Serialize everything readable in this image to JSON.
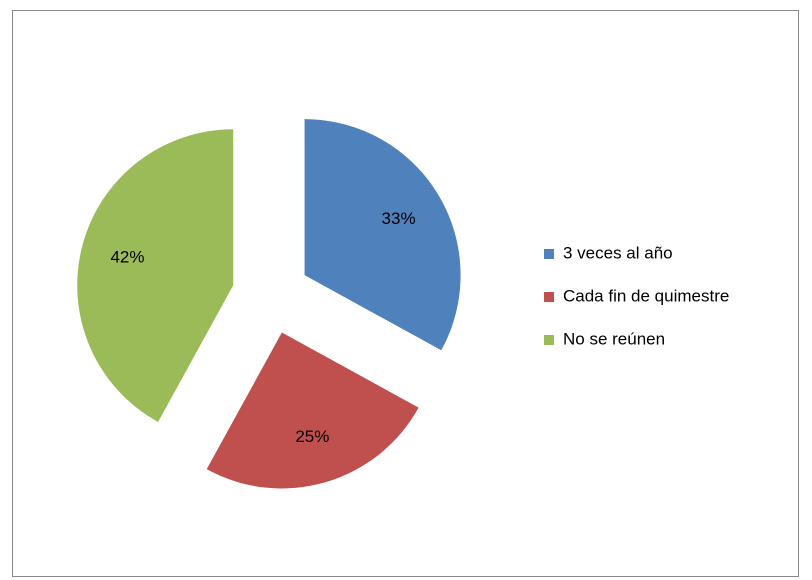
{
  "chart_data": {
    "type": "pie",
    "categories": [
      "3 veces al año",
      "Cada fin de quimestre",
      "No se reúnen"
    ],
    "values": [
      33,
      25,
      42
    ],
    "value_labels": [
      "33%",
      "25%",
      "42%"
    ],
    "colors": [
      "#4f81bd",
      "#c0504d",
      "#9bbb59"
    ],
    "legend": "right"
  }
}
